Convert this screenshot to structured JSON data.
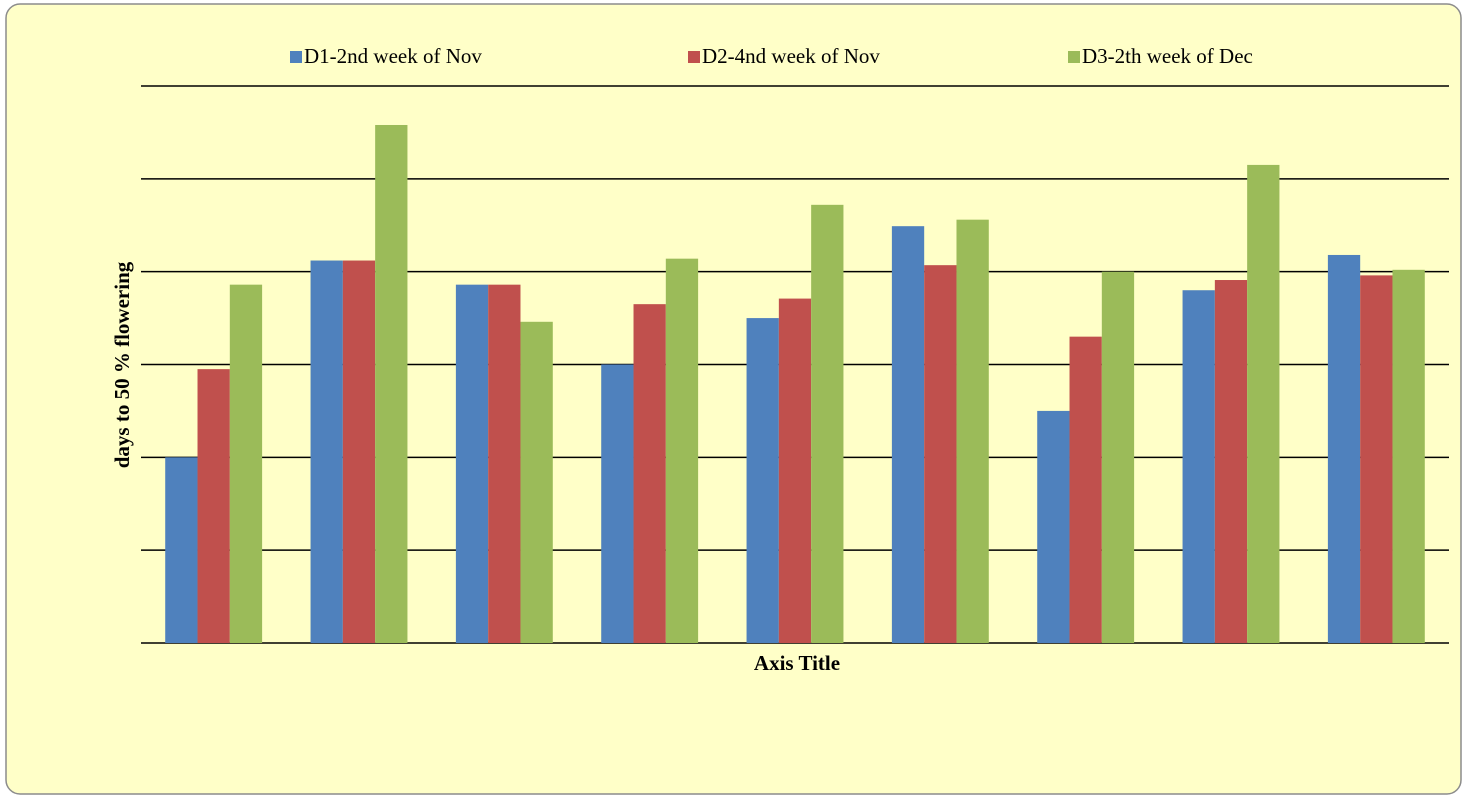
{
  "chart_data": {
    "type": "bar",
    "x_label": "Axis Title",
    "y_label": "days to 50 % flowering",
    "categories": [
      null,
      null,
      null,
      null,
      null,
      null,
      null,
      null,
      null
    ],
    "series": [
      {
        "name": "D1-2nd week of Nov",
        "color": "#4f81bd",
        "values": [
          2.0,
          4.12,
          3.86,
          3.0,
          3.5,
          4.49,
          2.5,
          3.8,
          4.18
        ]
      },
      {
        "name": "D2-4nd week of Nov",
        "color": "#c0504d",
        "values": [
          2.95,
          4.12,
          3.86,
          3.65,
          3.71,
          4.07,
          3.3,
          3.91,
          3.96
        ]
      },
      {
        "name": "D3-2th week of Dec",
        "color": "#9bbb59",
        "values": [
          3.86,
          5.58,
          3.46,
          4.14,
          4.72,
          4.56,
          4.0,
          5.15,
          4.02
        ]
      }
    ],
    "ylim": [
      0,
      6
    ],
    "yticks": [
      0,
      1,
      2,
      3,
      4,
      5,
      6
    ],
    "grid": true,
    "legend": "top"
  }
}
